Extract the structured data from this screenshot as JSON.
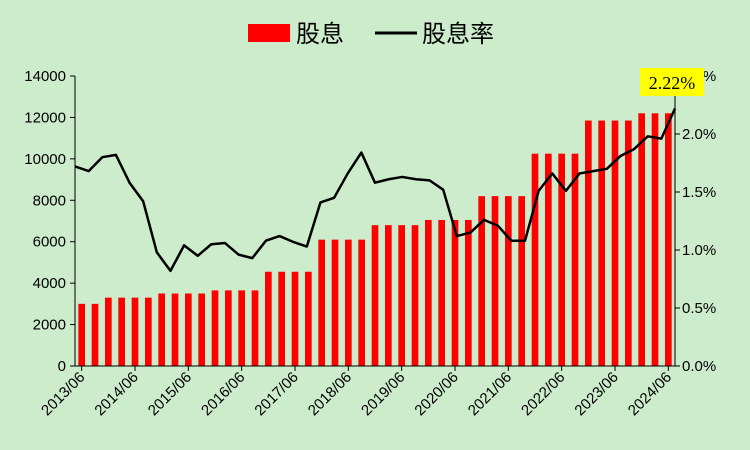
{
  "chart_data": {
    "type": "bar+line",
    "legend": [
      {
        "name": "股息",
        "kind": "bar",
        "color": "#ff0000"
      },
      {
        "name": "股息率",
        "kind": "line",
        "color": "#000000"
      }
    ],
    "legend_position": "top-center",
    "x_labels": [
      "2013/06",
      "2014/06",
      "2015/06",
      "2016/06",
      "2017/06",
      "2018/06",
      "2019/06",
      "2020/06",
      "2021/06",
      "2022/06",
      "2023/06",
      "2024/06"
    ],
    "bars": {
      "name": "股息",
      "values": [
        3000,
        3000,
        3300,
        3300,
        3300,
        3300,
        3500,
        3500,
        3500,
        3500,
        3650,
        3650,
        3650,
        3650,
        4550,
        4550,
        4550,
        4550,
        6100,
        6100,
        6100,
        6100,
        6800,
        6800,
        6800,
        6800,
        7050,
        7050,
        7050,
        7050,
        8200,
        8200,
        8200,
        8200,
        10250,
        10250,
        10250,
        10250,
        11850,
        11850,
        11850,
        11850,
        12200,
        12200,
        12200
      ]
    },
    "line": {
      "name": "股息率",
      "x": [
        0,
        2,
        4,
        6,
        8,
        10,
        12,
        14,
        16,
        18,
        20,
        22,
        24,
        26,
        28,
        30,
        32,
        34,
        36,
        38,
        40,
        42,
        44,
        46,
        48,
        50,
        52,
        54,
        56,
        58,
        60,
        62,
        64,
        66,
        68,
        70,
        72,
        74,
        76,
        78,
        80,
        82,
        84,
        86,
        88
      ],
      "values": [
        1.72,
        1.68,
        1.8,
        1.82,
        1.58,
        1.42,
        0.98,
        0.82,
        1.04,
        0.95,
        1.05,
        1.06,
        0.96,
        0.93,
        1.08,
        1.12,
        1.07,
        1.03,
        1.41,
        1.45,
        1.66,
        1.84,
        1.58,
        1.61,
        1.63,
        1.61,
        1.6,
        1.52,
        1.12,
        1.15,
        1.26,
        1.21,
        1.08,
        1.08,
        1.51,
        1.66,
        1.51,
        1.66,
        1.68,
        1.7,
        1.81,
        1.87,
        1.98,
        1.96,
        2.22
      ]
    },
    "y_left": {
      "min": 0,
      "max": 14000,
      "ticks": [
        "0",
        "2000",
        "4000",
        "6000",
        "8000",
        "10000",
        "12000",
        "14000"
      ]
    },
    "y_right": {
      "min": 0,
      "max": 2.5,
      "ticks": [
        "0.0%",
        "0.5%",
        "1.0%",
        "1.5%",
        "2.0%",
        "2.5%"
      ]
    },
    "annotation": {
      "text": "2.22%",
      "background": "#ffff00"
    },
    "grid": false,
    "background": "#cdeccb"
  }
}
